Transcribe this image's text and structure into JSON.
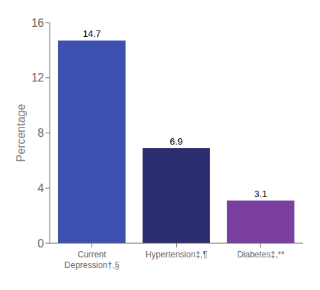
{
  "chart_data": {
    "type": "bar",
    "categories": [
      "Current\nDepression†,§",
      "Hypertension‡,¶",
      "Diabetes‡,**"
    ],
    "values": [
      14.7,
      6.9,
      3.1
    ],
    "colors": [
      "#3d50b0",
      "#2b2d6e",
      "#7b3fa0"
    ],
    "ylabel": "Percentage",
    "ylim": [
      0,
      16
    ],
    "yticks": [
      0,
      4,
      8,
      12,
      16
    ],
    "data_labels": true,
    "grid": false
  }
}
